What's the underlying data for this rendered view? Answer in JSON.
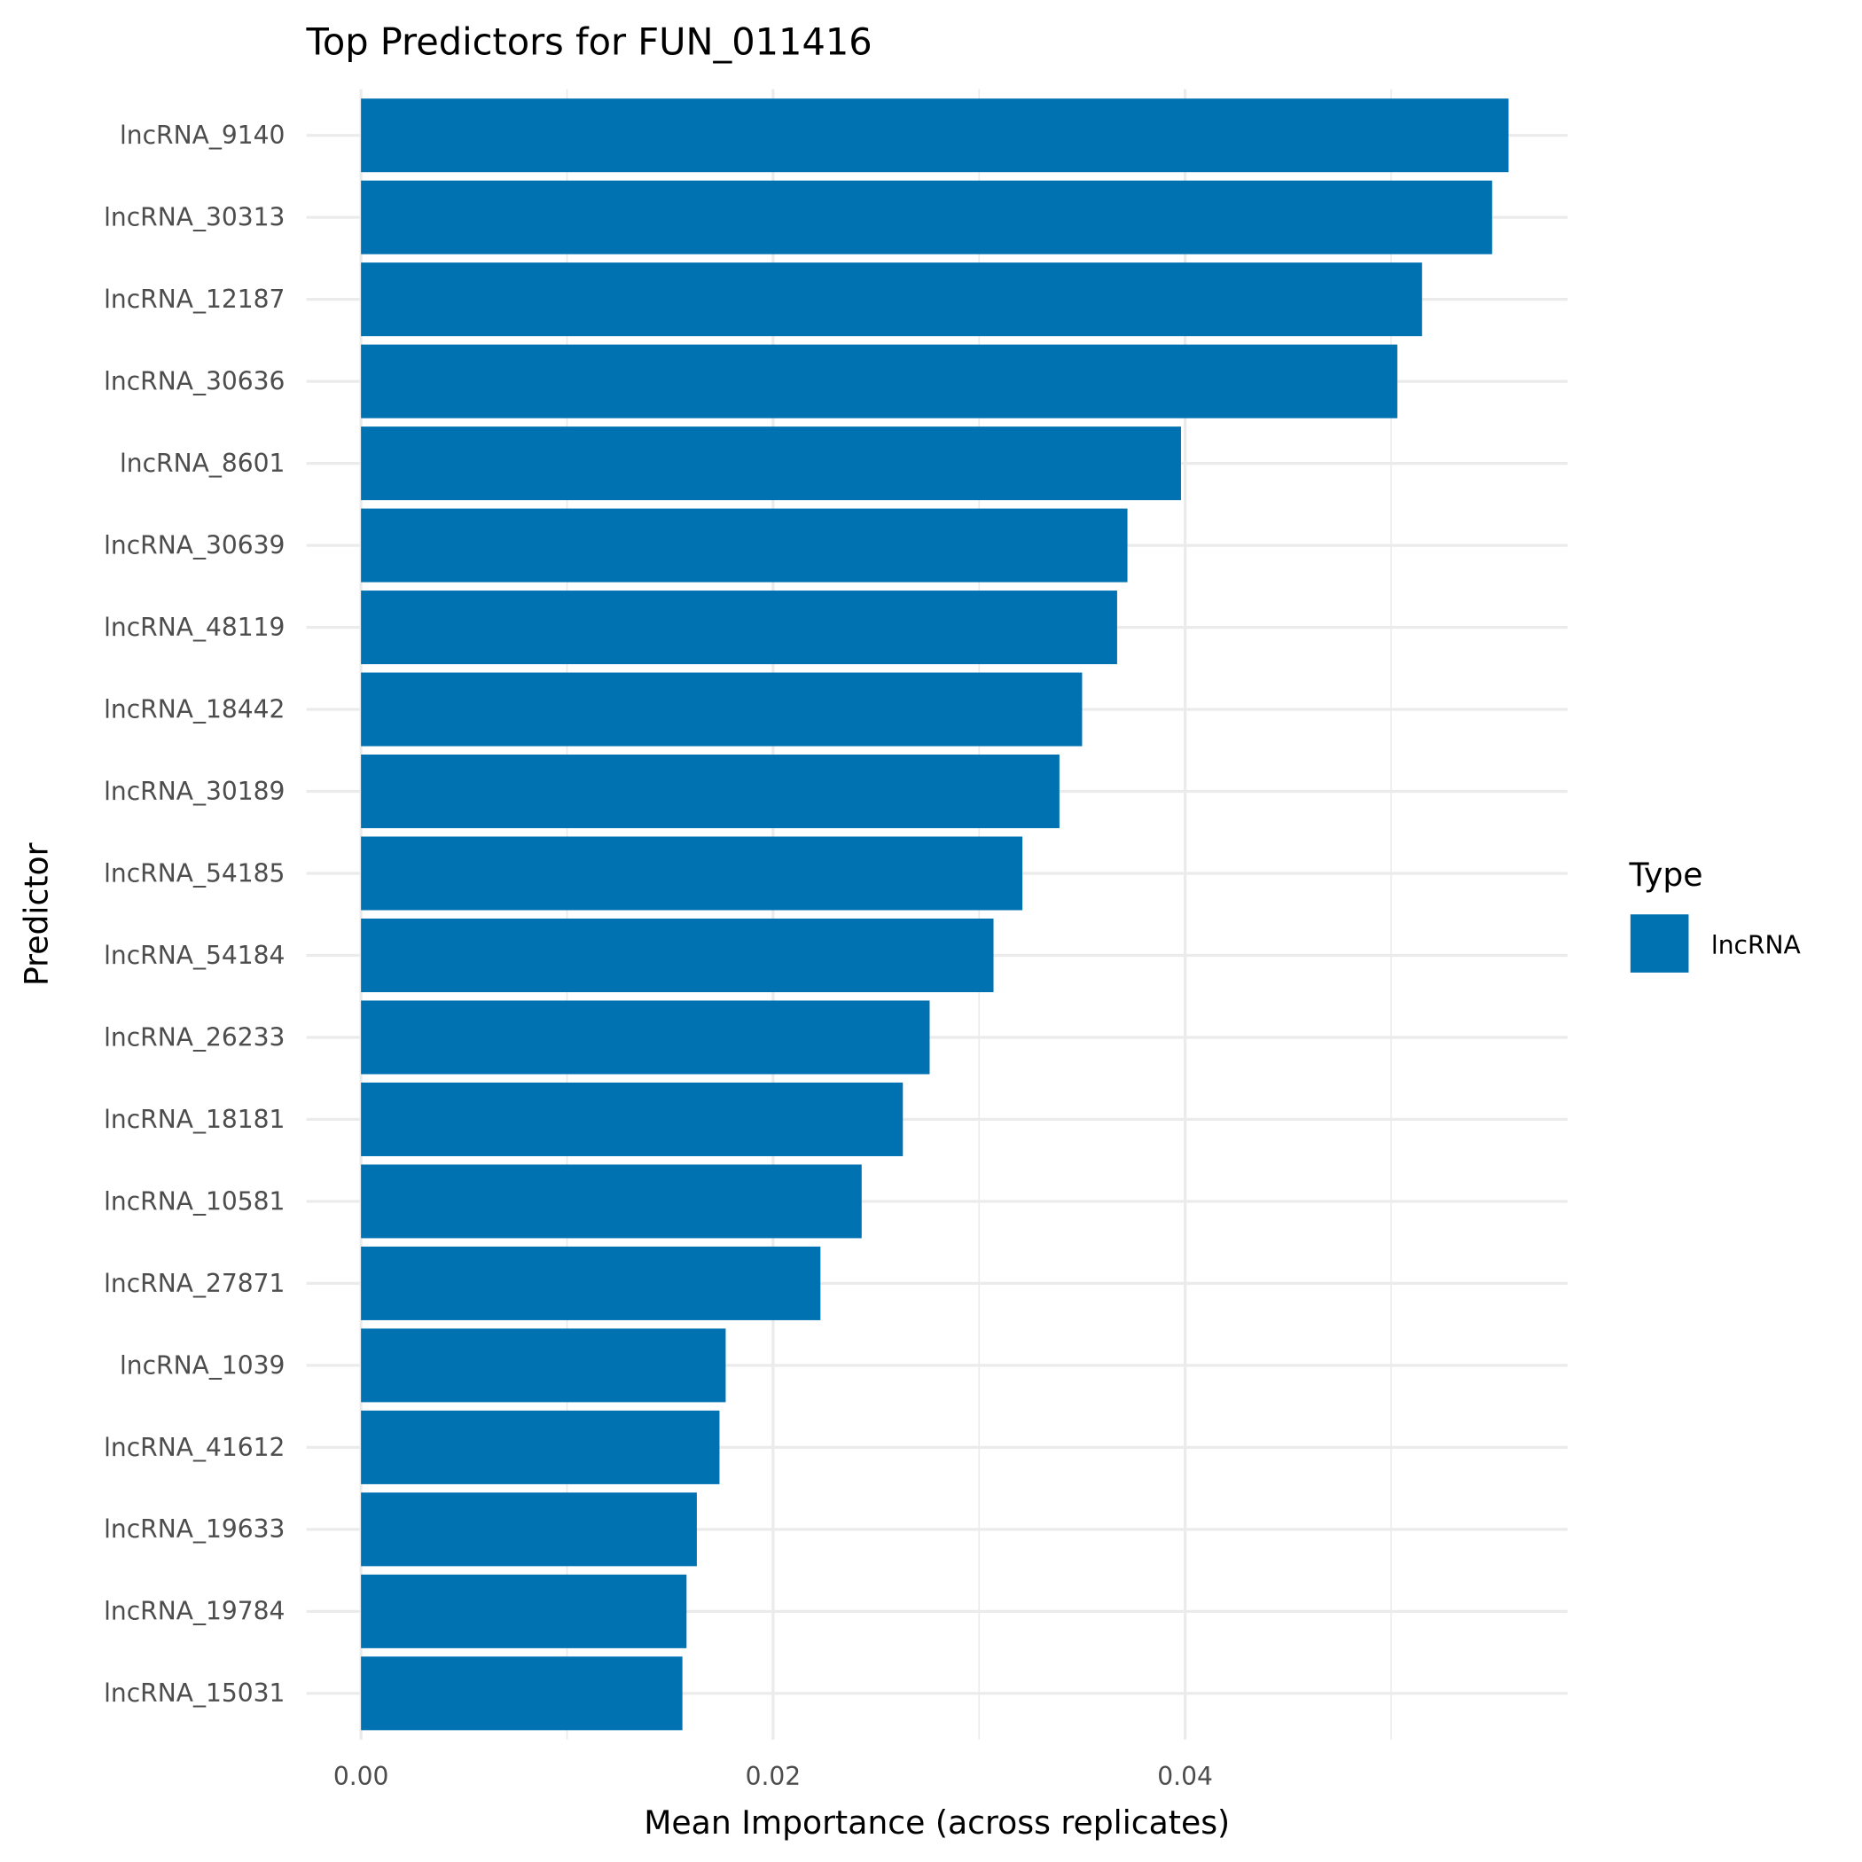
{
  "chart_data": {
    "type": "bar",
    "orientation": "horizontal",
    "title": "Top Predictors for FUN_011416",
    "xlabel": "Mean Importance (across replicates)",
    "ylabel": "Predictor",
    "categories": [
      "lncRNA_9140",
      "lncRNA_30313",
      "lncRNA_12187",
      "lncRNA_30636",
      "lncRNA_8601",
      "lncRNA_30639",
      "lncRNA_48119",
      "lncRNA_18442",
      "lncRNA_30189",
      "lncRNA_54185",
      "lncRNA_54184",
      "lncRNA_26233",
      "lncRNA_18181",
      "lncRNA_10581",
      "lncRNA_27871",
      "lncRNA_1039",
      "lncRNA_41612",
      "lncRNA_19633",
      "lncRNA_19784",
      "lncRNA_15031"
    ],
    "values": [
      0.0557,
      0.0549,
      0.0515,
      0.0503,
      0.0398,
      0.0372,
      0.0367,
      0.035,
      0.0339,
      0.0321,
      0.0307,
      0.0276,
      0.0263,
      0.0243,
      0.0223,
      0.0177,
      0.0174,
      0.0163,
      0.0158,
      0.0156
    ],
    "xticks": [
      "0.00",
      "0.02",
      "0.04"
    ],
    "xlim": [
      -0.0026,
      0.0586
    ],
    "grid": true,
    "legend": {
      "title": "Type",
      "entries": [
        "lncRNA"
      ],
      "placement": "right"
    },
    "colors": {
      "lncRNA": "#0072B2"
    }
  }
}
